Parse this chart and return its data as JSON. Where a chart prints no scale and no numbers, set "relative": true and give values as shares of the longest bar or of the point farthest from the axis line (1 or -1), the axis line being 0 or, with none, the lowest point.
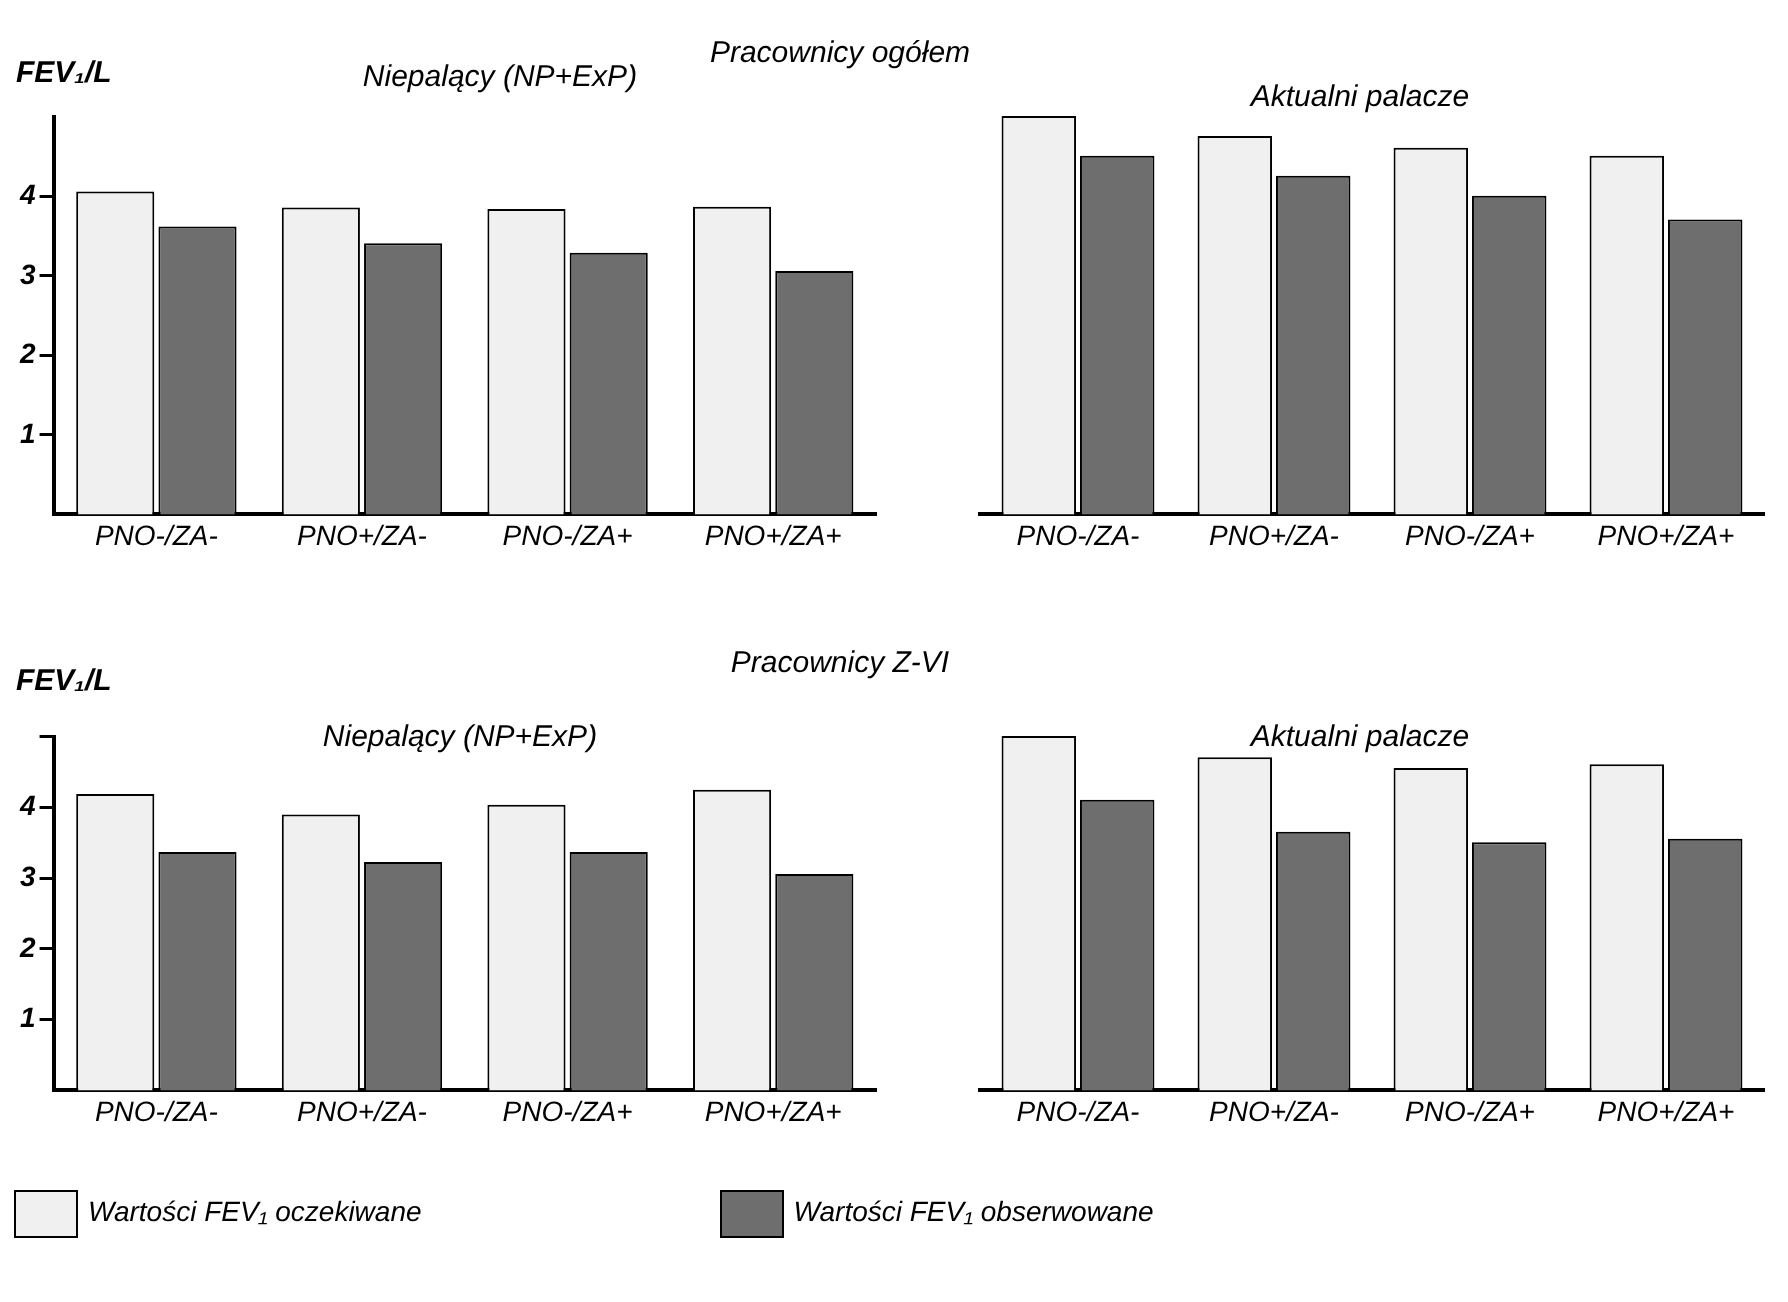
{
  "chart_data": [
    {
      "type": "bar",
      "title": "Pracownicy ogółem",
      "subtitle": "Niepalący (NP+ExP)",
      "ylabel": "FEV₁/L",
      "categories": [
        "PNO-/ZA-",
        "PNO+/ZA-",
        "PNO-/ZA+",
        "PNO+/ZA+"
      ],
      "series": [
        {
          "color": "#f0f0f0",
          "values": [
            4.06,
            3.86,
            3.84,
            3.87
          ]
        },
        {
          "color": "#6e6e6e",
          "values": [
            3.62,
            3.41,
            3.29,
            3.06
          ]
        }
      ],
      "ylim": [
        0,
        5
      ],
      "yticks": [
        1,
        2,
        3,
        4
      ],
      "grid": false
    },
    {
      "type": "bar",
      "subtitle": "Aktualni palacze",
      "categories": [
        "PNO-/ZA-",
        "PNO+/ZA-",
        "PNO-/ZA+",
        "PNO+/ZA+"
      ],
      "series": [
        {
          "color": "#f0f0f0",
          "values": [
            1,
            0.95,
            0.92,
            0.9
          ]
        },
        {
          "color": "#6e6e6e",
          "values": [
            0.9,
            0.85,
            0.8,
            0.74
          ]
        }
      ],
      "relative": true,
      "grid": false
    },
    {
      "type": "bar",
      "title": "Pracownicy Z-VI",
      "subtitle": "Niepalący (NP+ExP)",
      "ylabel": "FEV₁/L",
      "categories": [
        "PNO-/ZA-",
        "PNO+/ZA-",
        "PNO-/ZA+",
        "PNO+/ZA+"
      ],
      "series": [
        {
          "name": "Wartości FEV₁ oczekiwane",
          "color": "#f0f0f0",
          "values": [
            4.19,
            3.9,
            4.04,
            4.25
          ]
        },
        {
          "name": "Wartości FEV₁ obserwowane",
          "color": "#6e6e6e",
          "values": [
            3.37,
            3.23,
            3.37,
            3.06
          ]
        }
      ],
      "ylim": [
        0,
        5
      ],
      "yticks": [
        1,
        2,
        3,
        4,
        {
          "value": 5,
          "label": null
        }
      ],
      "grid": false,
      "legend": "bottom"
    },
    {
      "type": "bar",
      "subtitle": "Aktualni palacze",
      "categories": [
        "PNO-/ZA-",
        "PNO+/ZA-",
        "PNO-/ZA+",
        "PNO+/ZA+"
      ],
      "series": [
        {
          "color": "#f0f0f0",
          "values": [
            1,
            0.94,
            0.91,
            0.92
          ]
        },
        {
          "color": "#6e6e6e",
          "values": [
            0.82,
            0.73,
            0.7,
            0.71
          ]
        }
      ],
      "relative": true,
      "grid": false
    }
  ]
}
